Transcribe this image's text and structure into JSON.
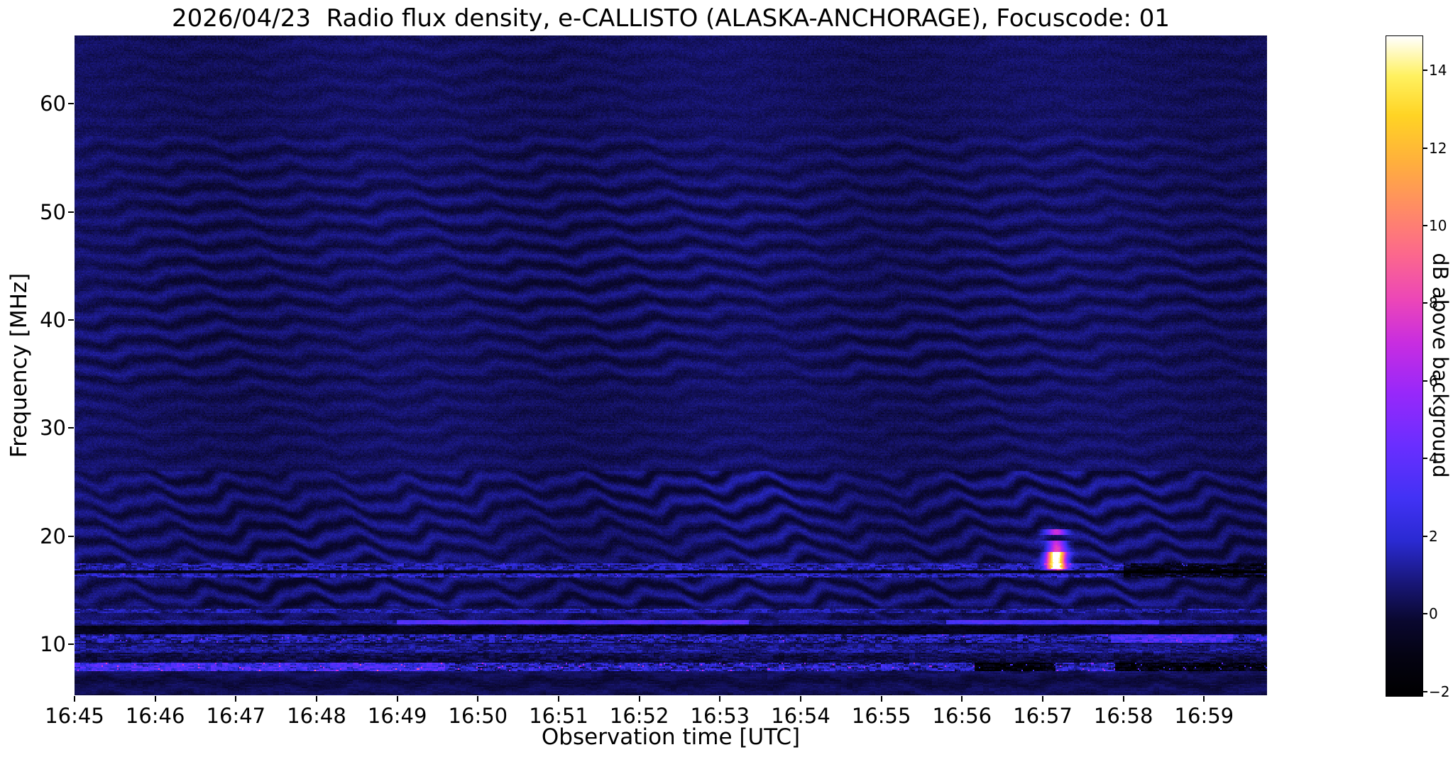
{
  "chart_data": {
    "type": "heatmap",
    "title": "2026/04/23  Radio flux density, e-CALLISTO (ALASKA-ANCHORAGE), Focuscode: 01",
    "date": "2026/04/23",
    "instrument": "e-CALLISTO",
    "station": "ALASKA-ANCHORAGE",
    "focuscode": "01",
    "xlabel": "Observation time [UTC]",
    "ylabel": "Frequency [MHz]",
    "colorbar_label": "dB above background",
    "x_start": "16:45",
    "duration_minutes": 14.78,
    "x_ticks": [
      {
        "t": 0,
        "label": "16:45"
      },
      {
        "t": 1,
        "label": "16:46"
      },
      {
        "t": 2,
        "label": "16:47"
      },
      {
        "t": 3,
        "label": "16:48"
      },
      {
        "t": 4,
        "label": "16:49"
      },
      {
        "t": 5,
        "label": "16:50"
      },
      {
        "t": 6,
        "label": "16:51"
      },
      {
        "t": 7,
        "label": "16:52"
      },
      {
        "t": 8,
        "label": "16:53"
      },
      {
        "t": 9,
        "label": "16:54"
      },
      {
        "t": 10,
        "label": "16:55"
      },
      {
        "t": 11,
        "label": "16:56"
      },
      {
        "t": 12,
        "label": "16:57"
      },
      {
        "t": 13,
        "label": "16:58"
      },
      {
        "t": 14,
        "label": "16:59"
      }
    ],
    "y_range_mhz": [
      5.3,
      66.3
    ],
    "y_ticks": [
      {
        "f": 10,
        "label": "10"
      },
      {
        "f": 20,
        "label": "20"
      },
      {
        "f": 30,
        "label": "30"
      },
      {
        "f": 40,
        "label": "40"
      },
      {
        "f": 50,
        "label": "50"
      },
      {
        "f": 60,
        "label": "60"
      }
    ],
    "value_range_db": [
      -2.1,
      14.9
    ],
    "colorbar_ticks": [
      {
        "v": 14,
        "label": "14"
      },
      {
        "v": 12,
        "label": "12"
      },
      {
        "v": 10,
        "label": "10"
      },
      {
        "v": 8,
        "label": "8"
      },
      {
        "v": 6,
        "label": "6"
      },
      {
        "v": 4,
        "label": "4"
      },
      {
        "v": 2,
        "label": "2"
      },
      {
        "v": 0,
        "label": "0"
      },
      {
        "v": -2,
        "label": "−2"
      }
    ],
    "colormap_stops": [
      [
        0.0,
        0,
        0,
        0
      ],
      [
        0.06,
        4,
        3,
        18
      ],
      [
        0.115,
        10,
        8,
        48
      ],
      [
        0.17,
        24,
        22,
        118
      ],
      [
        0.235,
        42,
        42,
        210
      ],
      [
        0.3,
        66,
        50,
        245
      ],
      [
        0.38,
        106,
        46,
        255
      ],
      [
        0.46,
        152,
        40,
        250
      ],
      [
        0.535,
        200,
        45,
        224
      ],
      [
        0.6,
        236,
        70,
        184
      ],
      [
        0.67,
        252,
        104,
        140
      ],
      [
        0.74,
        255,
        140,
        100
      ],
      [
        0.81,
        255,
        176,
        60
      ],
      [
        0.88,
        255,
        212,
        36
      ],
      [
        0.94,
        255,
        241,
        96
      ],
      [
        1.0,
        255,
        255,
        255
      ]
    ],
    "features": [
      "Wavy drifting interference ripple pattern across ~13-56 MHz",
      "Speckled RFI bands near 8, 10.5, 12, 13 and 17 MHz",
      "Dark absorption lanes near 8.8, 11.3 and 16.7 MHz",
      "Bright narrowband emission at ~12 MHz from ~16:49 to ~16:53 and ~16:56 to ~16:58",
      "Short bright burst reaching ~15 dB at ~16:57 between ~17 and 19.5 MHz",
      "Band near 8 MHz drops out (black) after ~16:56",
      "Dark line near 17 MHz from ~16:58 to end of record"
    ],
    "render": {
      "ripple": {
        "stripe_spacing_mhz": 1.75,
        "wobble_periods_min": [
          1.1,
          2.9,
          0.45
        ],
        "amp_by_band": [
          [
            57.0,
            66.3,
            0.25
          ],
          [
            34.0,
            57.0,
            0.6
          ],
          [
            26.0,
            34.0,
            0.4
          ],
          [
            13.5,
            26.0,
            0.95
          ],
          [
            5.3,
            13.5,
            0.5
          ]
        ]
      },
      "bands": [
        {
          "f": [
            16.55,
            16.82
          ],
          "base": -1.1,
          "speckle": 0.7,
          "sparkle": 0,
          "boost": 0,
          "segs": [
            [
              13.0,
              14.78,
              -1.6
            ]
          ]
        },
        {
          "f": [
            16.2,
            17.55
          ],
          "base": 1.0,
          "speckle": 2.0,
          "sparkle": 0.01,
          "boost": 2.5,
          "segs": [
            [
              13.0,
              14.78,
              -2.2
            ]
          ]
        },
        {
          "f": [
            12.85,
            13.32
          ],
          "base": 0.7,
          "speckle": 1.5,
          "sparkle": 0,
          "boost": 0,
          "segs": []
        },
        {
          "f": [
            11.85,
            12.3
          ],
          "base": 0.8,
          "speckle": 0.9,
          "sparkle": 0,
          "boost": 0,
          "segs": [
            [
              4.0,
              8.35,
              2.4
            ],
            [
              10.8,
              13.45,
              2.0
            ]
          ]
        },
        {
          "f": [
            11.0,
            11.72
          ],
          "base": -1.2,
          "speckle": 0.8,
          "sparkle": 0,
          "boost": 0,
          "segs": []
        },
        {
          "f": [
            10.15,
            10.95
          ],
          "base": 0.9,
          "speckle": 2.2,
          "sparkle": 0.012,
          "boost": 3.5,
          "segs": [
            [
              12.85,
              14.35,
              1.8
            ]
          ]
        },
        {
          "f": [
            9.3,
            10.02
          ],
          "base": 0.55,
          "speckle": 1.3,
          "sparkle": 0,
          "boost": 0,
          "segs": []
        },
        {
          "f": [
            8.35,
            9.25
          ],
          "base": -0.35,
          "speckle": 1.0,
          "sparkle": 0,
          "boost": 0,
          "segs": []
        },
        {
          "f": [
            7.55,
            8.32
          ],
          "base": 1.15,
          "speckle": 2.6,
          "sparkle": 0.02,
          "boost": 4.5,
          "segs": [
            [
              0.0,
              4.6,
              1.2
            ],
            [
              11.15,
              12.15,
              -3.2
            ],
            [
              12.9,
              14.78,
              -3.0
            ]
          ]
        },
        {
          "f": [
            5.3,
            7.4
          ],
          "base": -0.2,
          "speckle": 0.4,
          "sparkle": 0,
          "boost": 0,
          "segs": []
        }
      ],
      "flare": {
        "t_center_min": 12.17,
        "t_sigma_min": 0.085,
        "f_low": 16.9,
        "f_high": 19.6,
        "peak_db": 15.5,
        "core": [
          17.0,
          18.55
        ],
        "satellite": {
          "f": [
            20.1,
            20.65
          ],
          "peak_db": 6
        }
      }
    }
  }
}
